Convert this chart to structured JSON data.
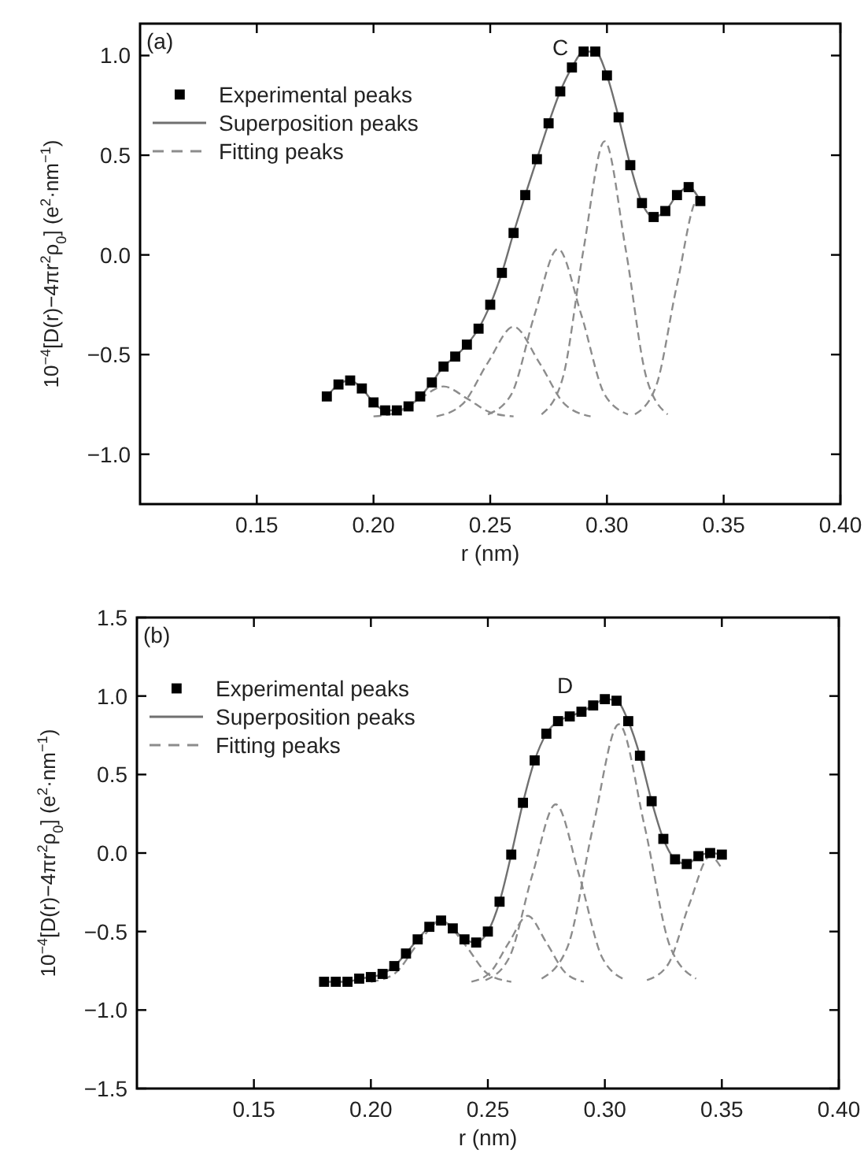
{
  "chart_data": [
    {
      "type": "line",
      "xlabel": "r (nm)",
      "ylabel": "10$^{−4}$[D(r)−4πr$^{2}$ρ$_{0}$] (e$^{2}$·nm$^{−1}$)",
      "xlim": [
        0.1,
        0.4
      ],
      "ylim": [
        -1.25,
        1.16
      ],
      "xticks": [
        0.15,
        {
          "value": 0.2,
          "label": "0.20"
        },
        0.25,
        {
          "value": 0.3,
          "label": "0.30"
        },
        0.35,
        {
          "value": 0.4,
          "label": "0.40"
        }
      ],
      "yticks": [
        {
          "value": -1,
          "label": "−1.0"
        },
        {
          "value": -0.5,
          "label": "−0.5"
        },
        {
          "value": 0,
          "label": "0.0"
        },
        {
          "value": 0.5,
          "label": "0.5"
        },
        {
          "value": 1,
          "label": "1.0"
        }
      ],
      "grid": false,
      "legend": "top left",
      "annotations": [
        "(a)",
        "C"
      ],
      "series": [
        {
          "name": "Experimental peaks",
          "type": "scatter",
          "marker": "square",
          "color": "#000000",
          "x": [
            0.18,
            0.185,
            0.19,
            0.195,
            0.2,
            0.205,
            0.21,
            0.215,
            0.22,
            0.225,
            0.23,
            0.235,
            0.24,
            0.245,
            0.25,
            0.255,
            0.26,
            0.265,
            0.27,
            0.275,
            0.28,
            0.285,
            0.29,
            0.295,
            0.3,
            0.305,
            0.31,
            0.315,
            0.32,
            0.325,
            0.33,
            0.335,
            0.34
          ],
          "values": [
            -0.71,
            -0.65,
            -0.63,
            -0.67,
            -0.74,
            -0.78,
            -0.78,
            -0.76,
            -0.71,
            -0.64,
            -0.56,
            -0.51,
            -0.45,
            -0.37,
            -0.25,
            -0.09,
            0.11,
            0.3,
            0.48,
            0.66,
            0.82,
            0.94,
            1.02,
            1.02,
            0.9,
            0.69,
            0.45,
            0.26,
            0.19,
            0.22,
            0.3,
            0.34,
            0.27
          ]
        },
        {
          "name": "Superposition peaks",
          "line_style": "solid",
          "color": "#707070",
          "x": [
            0.18,
            0.185,
            0.19,
            0.195,
            0.2,
            0.205,
            0.21,
            0.215,
            0.22,
            0.225,
            0.23,
            0.235,
            0.24,
            0.245,
            0.25,
            0.255,
            0.26,
            0.265,
            0.27,
            0.275,
            0.28,
            0.285,
            0.29,
            0.295,
            0.3,
            0.305,
            0.31,
            0.315,
            0.32,
            0.325,
            0.33,
            0.335,
            0.34
          ],
          "values": [
            -0.71,
            -0.65,
            -0.63,
            -0.67,
            -0.74,
            -0.78,
            -0.78,
            -0.76,
            -0.71,
            -0.64,
            -0.56,
            -0.51,
            -0.45,
            -0.37,
            -0.25,
            -0.09,
            0.11,
            0.3,
            0.48,
            0.66,
            0.82,
            0.94,
            1.02,
            1.02,
            0.9,
            0.69,
            0.45,
            0.26,
            0.19,
            0.22,
            0.3,
            0.34,
            0.27
          ]
        },
        {
          "name": "Fitting peaks",
          "line_style": "dashed",
          "color": "#8c8c8c",
          "x": [
            0.2,
            0.21,
            0.22,
            0.23,
            0.24,
            0.25,
            0.26
          ],
          "values": [
            -0.81,
            -0.79,
            -0.72,
            -0.66,
            -0.72,
            -0.79,
            -0.81
          ]
        },
        {
          "line_style": "dashed",
          "color": "#8c8c8c",
          "x": [
            0.227,
            0.238,
            0.249,
            0.26,
            0.271,
            0.282,
            0.293
          ],
          "values": [
            -0.81,
            -0.75,
            -0.54,
            -0.36,
            -0.54,
            -0.75,
            -0.81
          ]
        },
        {
          "line_style": "dashed",
          "color": "#8c8c8c",
          "x": [
            0.249,
            0.259,
            0.269,
            0.279,
            0.289,
            0.299,
            0.309
          ],
          "values": [
            -0.8,
            -0.7,
            -0.3,
            0.03,
            -0.3,
            -0.7,
            -0.8
          ]
        },
        {
          "line_style": "dashed",
          "color": "#8c8c8c",
          "x": [
            0.272,
            0.281,
            0.29,
            0.299,
            0.308,
            0.317,
            0.326
          ],
          "values": [
            -0.8,
            -0.62,
            0.03,
            0.57,
            0.03,
            -0.62,
            -0.8
          ]
        },
        {
          "line_style": "dashed",
          "color": "#8c8c8c",
          "x": [
            0.312,
            0.321,
            0.33,
            0.339,
            0.34
          ],
          "values": [
            -0.8,
            -0.66,
            -0.15,
            0.28,
            0.28
          ]
        }
      ]
    },
    {
      "type": "line",
      "xlabel": "r (nm)",
      "ylabel": "10$^{−4}$[D(r)−4πr$^{2}$ρ$_{0}$] (e$^{2}$·nm$^{−1}$)",
      "xlim": [
        0.1,
        0.4
      ],
      "ylim": [
        -1.5,
        1.5
      ],
      "xticks": [
        0.15,
        {
          "value": 0.2,
          "label": "0.20"
        },
        0.25,
        {
          "value": 0.3,
          "label": "0.30"
        },
        0.35,
        {
          "value": 0.4,
          "label": "0.40"
        }
      ],
      "yticks": [
        {
          "value": -1.5,
          "label": "−1.5"
        },
        {
          "value": -1,
          "label": "−1.0"
        },
        {
          "value": -0.5,
          "label": "−0.5"
        },
        {
          "value": 0,
          "label": "0.0"
        },
        {
          "value": 0.5,
          "label": "0.5"
        },
        {
          "value": 1,
          "label": "1.0"
        },
        1.5
      ],
      "grid": false,
      "legend": "top left",
      "annotations": [
        "(b)",
        "D"
      ],
      "series": [
        {
          "name": "Experimental peaks",
          "type": "scatter",
          "marker": "square",
          "color": "#000000",
          "x": [
            0.18,
            0.185,
            0.19,
            0.195,
            0.2,
            0.205,
            0.21,
            0.215,
            0.22,
            0.225,
            0.23,
            0.235,
            0.24,
            0.245,
            0.25,
            0.255,
            0.26,
            0.265,
            0.27,
            0.275,
            0.28,
            0.285,
            0.29,
            0.295,
            0.3,
            0.305,
            0.31,
            0.315,
            0.32,
            0.325,
            0.33,
            0.335,
            0.34,
            0.345,
            0.35
          ],
          "values": [
            -0.82,
            -0.82,
            -0.82,
            -0.8,
            -0.79,
            -0.77,
            -0.72,
            -0.64,
            -0.55,
            -0.47,
            -0.43,
            -0.48,
            -0.55,
            -0.57,
            -0.5,
            -0.31,
            -0.01,
            0.32,
            0.59,
            0.76,
            0.84,
            0.87,
            0.9,
            0.94,
            0.98,
            0.97,
            0.84,
            0.62,
            0.33,
            0.09,
            -0.04,
            -0.07,
            -0.02,
            0.0,
            -0.01
          ]
        },
        {
          "name": "Superposition peaks",
          "line_style": "solid",
          "color": "#707070",
          "x": [
            0.18,
            0.185,
            0.19,
            0.195,
            0.2,
            0.205,
            0.21,
            0.215,
            0.22,
            0.225,
            0.23,
            0.235,
            0.24,
            0.245,
            0.25,
            0.255,
            0.26,
            0.265,
            0.27,
            0.275,
            0.28,
            0.285,
            0.29,
            0.295,
            0.3,
            0.305,
            0.31,
            0.315,
            0.32,
            0.325,
            0.33,
            0.335,
            0.34,
            0.345,
            0.35
          ],
          "values": [
            -0.82,
            -0.82,
            -0.82,
            -0.8,
            -0.79,
            -0.77,
            -0.72,
            -0.64,
            -0.55,
            -0.47,
            -0.43,
            -0.48,
            -0.55,
            -0.57,
            -0.5,
            -0.31,
            -0.01,
            0.32,
            0.59,
            0.76,
            0.84,
            0.87,
            0.9,
            0.94,
            0.98,
            0.97,
            0.84,
            0.62,
            0.33,
            0.09,
            -0.04,
            -0.07,
            -0.02,
            0.0,
            -0.01
          ]
        },
        {
          "name": "Fitting peaks",
          "line_style": "dashed",
          "color": "#8c8c8c",
          "x": [
            0.2,
            0.21,
            0.22,
            0.23,
            0.24,
            0.25,
            0.26
          ],
          "values": [
            -0.82,
            -0.77,
            -0.58,
            -0.43,
            -0.58,
            -0.77,
            -0.82
          ]
        },
        {
          "line_style": "dashed",
          "color": "#8c8c8c",
          "x": [
            0.243,
            0.251,
            0.259,
            0.267,
            0.275,
            0.283,
            0.291
          ],
          "values": [
            -0.82,
            -0.76,
            -0.57,
            -0.4,
            -0.57,
            -0.76,
            -0.82
          ]
        },
        {
          "line_style": "dashed",
          "color": "#8c8c8c",
          "x": [
            0.249,
            0.259,
            0.269,
            0.279,
            0.289,
            0.299,
            0.309
          ],
          "values": [
            -0.81,
            -0.67,
            -0.14,
            0.31,
            -0.14,
            -0.67,
            -0.81
          ]
        },
        {
          "line_style": "dashed",
          "color": "#8c8c8c",
          "x": [
            0.273,
            0.284,
            0.295,
            0.306,
            0.317,
            0.328,
            0.339
          ],
          "values": [
            -0.8,
            -0.6,
            0.17,
            0.82,
            0.17,
            -0.6,
            -0.8
          ]
        },
        {
          "line_style": "dashed",
          "color": "#8c8c8c",
          "x": [
            0.318,
            0.327,
            0.336,
            0.345,
            0.35
          ],
          "values": [
            -0.81,
            -0.71,
            -0.33,
            -0.02,
            -0.1
          ]
        }
      ]
    }
  ]
}
